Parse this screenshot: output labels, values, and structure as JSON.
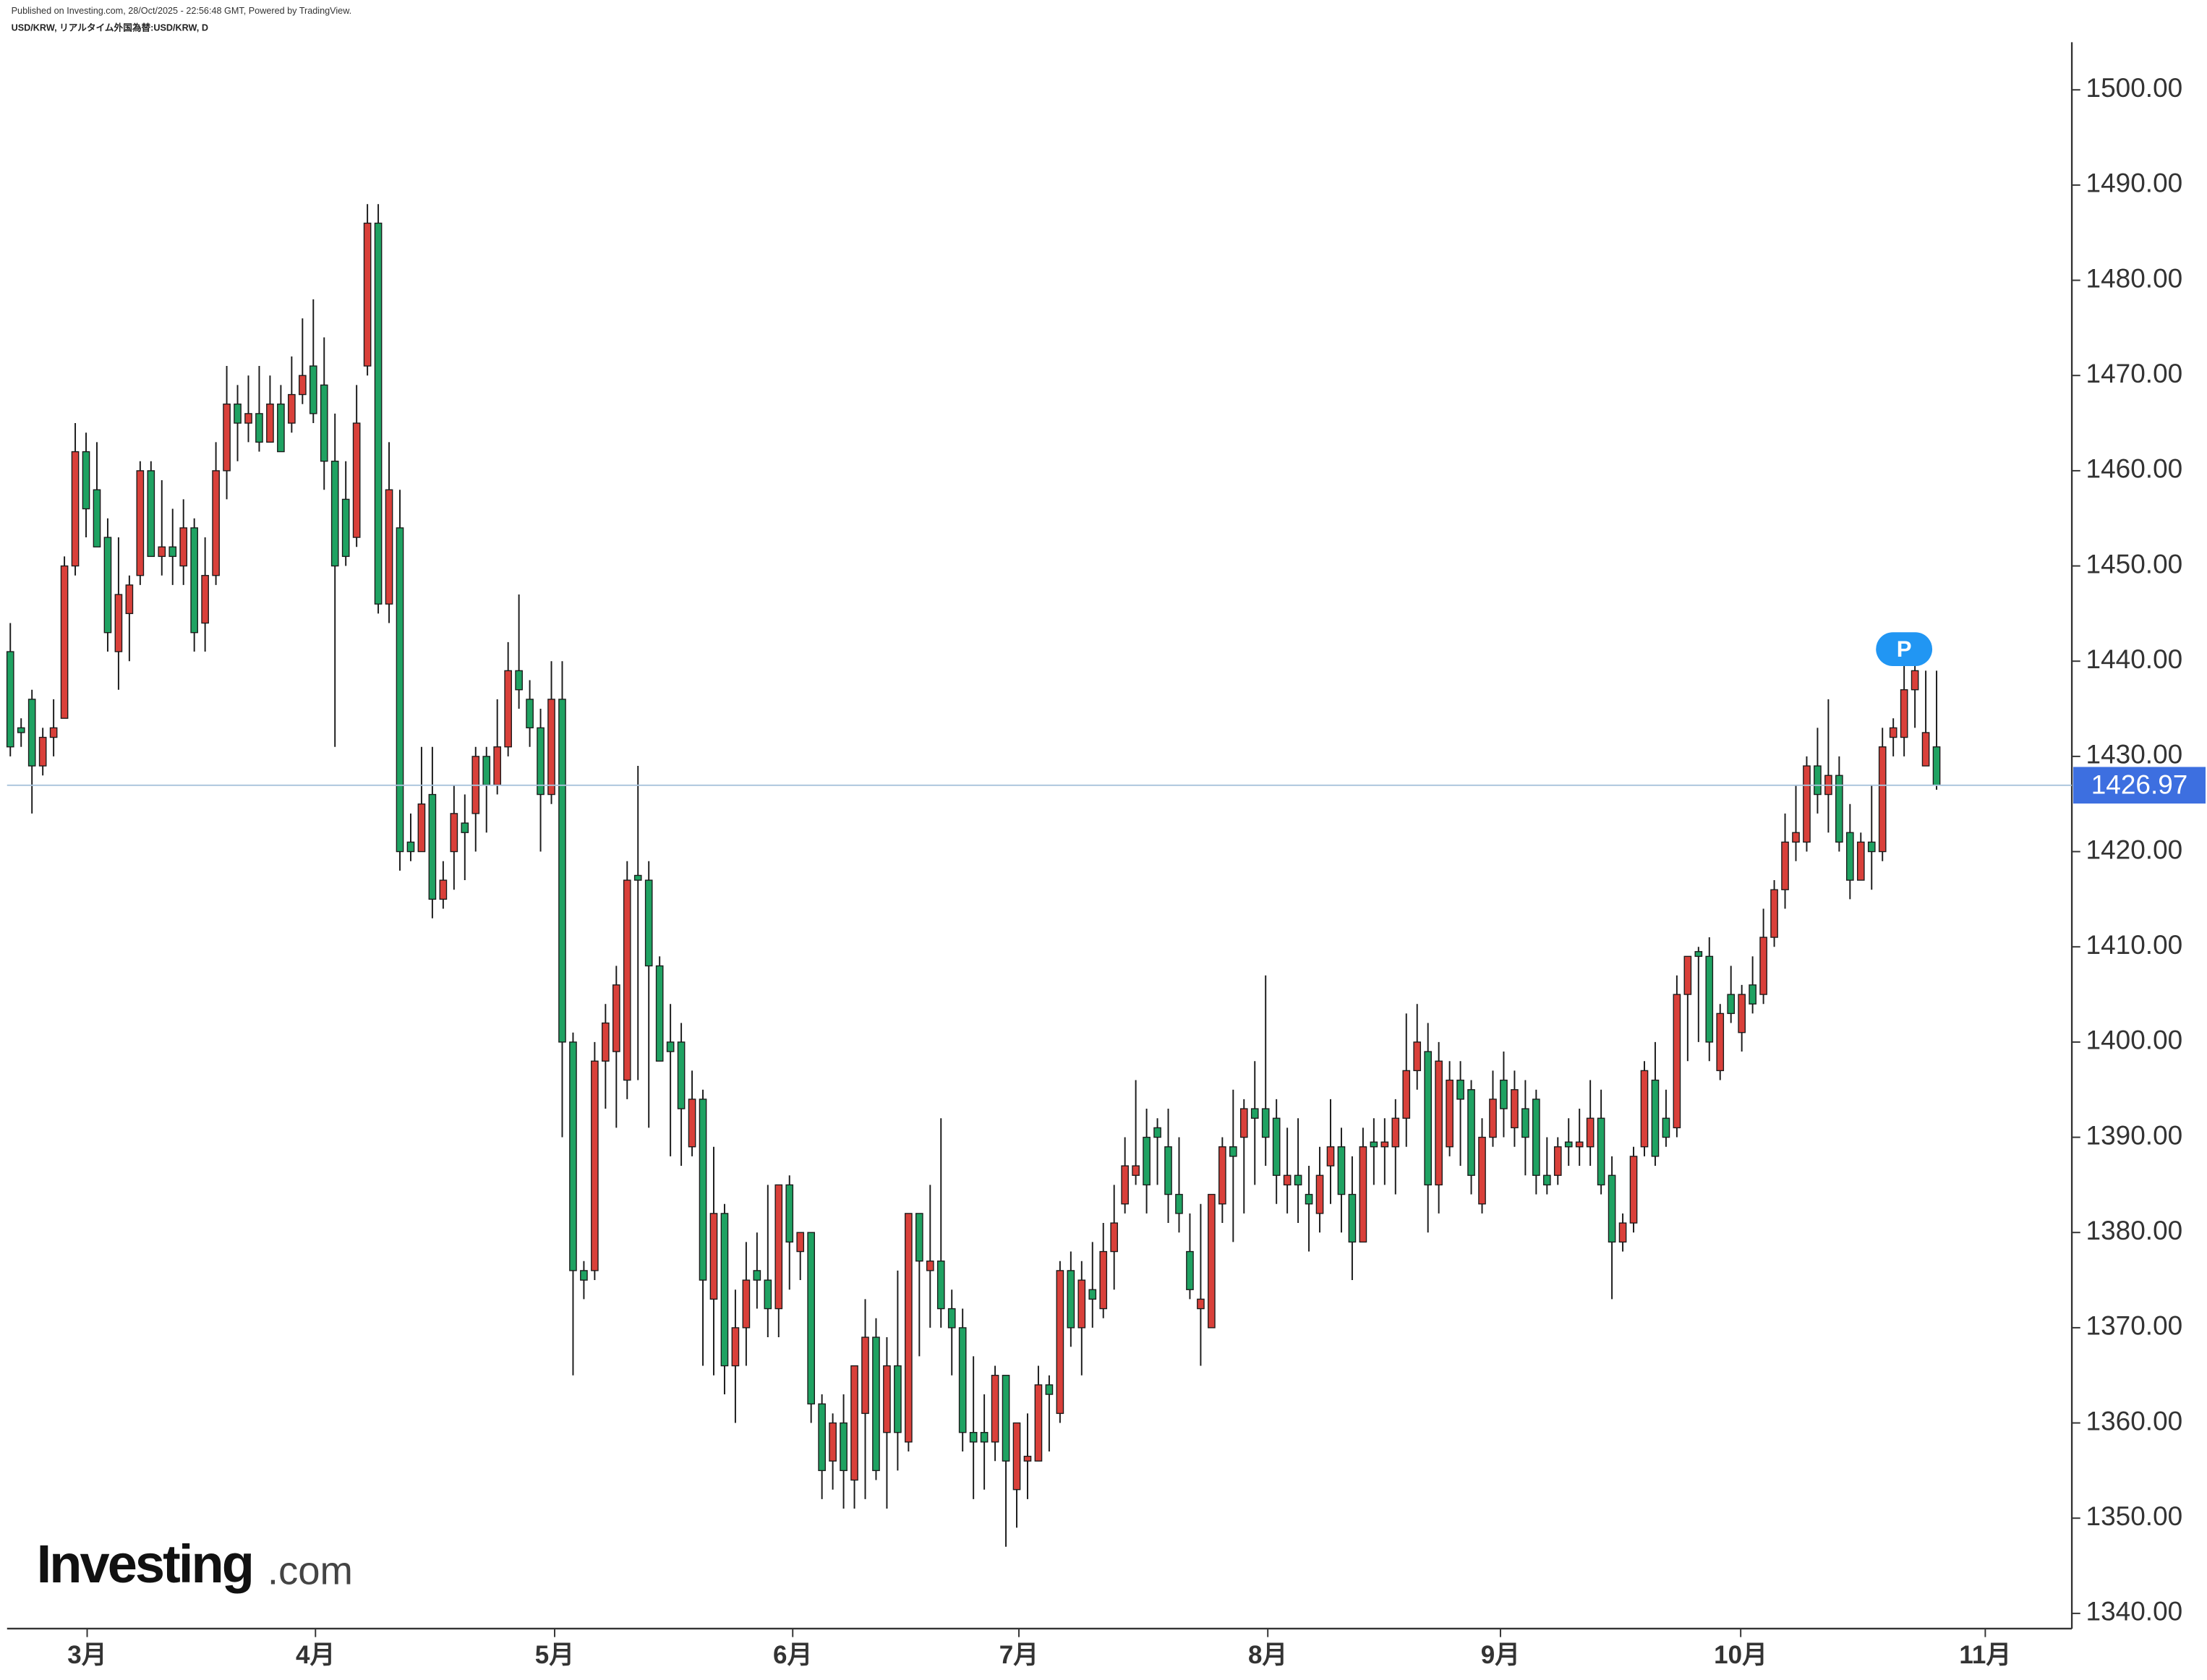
{
  "chart_data": {
    "type": "candlestick",
    "title": "USD/KRW, リアルタイム外国為替:USD/KRW, D",
    "published": "Published on Investing.com, 28/Oct/2025 - 22:56:48 GMT, Powered by TradingView.",
    "logo": {
      "main": "Investing",
      "suffix": ".com"
    },
    "marker_label": "P",
    "up_color": "#d9403a",
    "down_color": "#1fa262",
    "price_line_color": "#3d6fe0",
    "ylim": [
      1338.4,
      1505
    ],
    "yticks": [
      {
        "value": 1340,
        "label": "1340.00"
      },
      {
        "value": 1350,
        "label": "1350.00"
      },
      {
        "value": 1360,
        "label": "1360.00"
      },
      {
        "value": 1370,
        "label": "1370.00"
      },
      {
        "value": 1380,
        "label": "1380.00"
      },
      {
        "value": 1390,
        "label": "1390.00"
      },
      {
        "value": 1400,
        "label": "1400.00"
      },
      {
        "value": 1410,
        "label": "1410.00"
      },
      {
        "value": 1420,
        "label": "1420.00"
      },
      {
        "value": 1430,
        "label": "1430.00"
      },
      {
        "value": 1440,
        "label": "1440.00"
      },
      {
        "value": 1450,
        "label": "1450.00"
      },
      {
        "value": 1460,
        "label": "1460.00"
      },
      {
        "value": 1470,
        "label": "1470.00"
      },
      {
        "value": 1480,
        "label": "1480.00"
      },
      {
        "value": 1490,
        "label": "1490.00"
      },
      {
        "value": 1500,
        "label": "1500.00"
      }
    ],
    "xlim": [
      -0.3,
      190.5
    ],
    "xticks": [
      {
        "value": 7.1,
        "label": "3月"
      },
      {
        "value": 28.2,
        "label": "4月"
      },
      {
        "value": 50.3,
        "label": "5月"
      },
      {
        "value": 72.3,
        "label": "6月"
      },
      {
        "value": 93.2,
        "label": "7月"
      },
      {
        "value": 116.2,
        "label": "8月"
      },
      {
        "value": 137.7,
        "label": "9月"
      },
      {
        "value": 159.9,
        "label": "10月"
      },
      {
        "value": 182.5,
        "label": "11月"
      }
    ],
    "open": [
      1441,
      1433,
      1436,
      1429,
      1432,
      1434,
      1450,
      1462,
      1458,
      1453,
      1441,
      1445,
      1449,
      1460,
      1451,
      1452,
      1450,
      1454,
      1444,
      1449,
      1460,
      1467,
      1465,
      1466,
      1463,
      1467,
      1465,
      1468,
      1471,
      1469,
      1461,
      1457,
      1453,
      1471,
      1486,
      1446,
      1454,
      1421,
      1420,
      1426,
      1415,
      1420,
      1423,
      1424,
      1430,
      1427,
      1431,
      1439,
      1436,
      1433,
      1426,
      1436,
      1400,
      1376,
      1376,
      1398,
      1399,
      1396,
      1417.5,
      1417,
      1408,
      1400,
      1400,
      1389,
      1394,
      1373,
      1382,
      1366,
      1370,
      1376,
      1375,
      1372,
      1385,
      1378,
      1380,
      1362,
      1356,
      1360,
      1354,
      1361,
      1369,
      1359,
      1366,
      1358,
      1382,
      1376,
      1377,
      1372,
      1370,
      1359,
      1359,
      1358,
      1365,
      1353,
      1356,
      1356,
      1364,
      1361,
      1376,
      1370,
      1374,
      1372,
      1378,
      1383,
      1386,
      1390,
      1391,
      1389,
      1384,
      1378,
      1372,
      1370,
      1383,
      1389,
      1390,
      1393,
      1393,
      1392,
      1385,
      1386,
      1384,
      1382,
      1387,
      1389,
      1384,
      1379,
      1389.5,
      1389,
      1389,
      1392,
      1397,
      1399,
      1385,
      1389,
      1396,
      1395,
      1383,
      1390,
      1396,
      1391,
      1393,
      1394,
      1386,
      1386,
      1389.5,
      1389,
      1389,
      1392,
      1386,
      1379,
      1381,
      1389,
      1396,
      1392,
      1391,
      1405,
      1409.5,
      1409,
      1397,
      1405,
      1401,
      1406,
      1405,
      1411,
      1416,
      1421,
      1421,
      1429,
      1426,
      1428,
      1422,
      1417,
      1421,
      1420,
      1432,
      1432,
      1437,
      1429,
      1431
    ],
    "high": [
      1444,
      1434,
      1437,
      1433,
      1436,
      1451,
      1465,
      1464,
      1463,
      1455,
      1453,
      1449,
      1461,
      1461,
      1459,
      1456,
      1457,
      1455,
      1453,
      1463,
      1471,
      1469,
      1470,
      1471,
      1470,
      1469,
      1472,
      1476,
      1478,
      1474,
      1466,
      1461,
      1469,
      1488,
      1488,
      1463,
      1458,
      1424,
      1431,
      1431,
      1419,
      1427,
      1426,
      1431,
      1431,
      1436,
      1442,
      1447,
      1438,
      1435,
      1440,
      1440,
      1401,
      1377,
      1400,
      1404,
      1408,
      1419,
      1429,
      1419,
      1409,
      1404,
      1402,
      1397,
      1395,
      1389,
      1383,
      1374,
      1379,
      1380,
      1385,
      1385,
      1386,
      1380,
      1380,
      1363,
      1361,
      1363,
      1366,
      1373,
      1371,
      1369,
      1376,
      1382,
      1382,
      1385,
      1392,
      1374,
      1372,
      1367,
      1363,
      1366,
      1365,
      1360,
      1361,
      1366,
      1365,
      1377,
      1378,
      1377,
      1379,
      1381,
      1385,
      1390,
      1396,
      1393,
      1392,
      1393,
      1390,
      1382,
      1383,
      1384,
      1390,
      1395,
      1394,
      1398,
      1407,
      1394,
      1391,
      1392,
      1387,
      1389,
      1394,
      1391,
      1388,
      1391,
      1392,
      1392,
      1394,
      1403,
      1404,
      1402,
      1400,
      1398,
      1398,
      1396,
      1392,
      1397,
      1399,
      1397,
      1396,
      1395,
      1390,
      1390,
      1392,
      1393,
      1396,
      1395,
      1388,
      1382,
      1389,
      1398,
      1400,
      1395,
      1407,
      1409,
      1410,
      1411,
      1404,
      1408,
      1406,
      1409,
      1414,
      1417,
      1424,
      1427,
      1430,
      1433,
      1436,
      1430,
      1425,
      1422,
      1427,
      1433,
      1434,
      1442,
      1440,
      1439,
      1439
    ],
    "low": [
      1430,
      1431,
      1424,
      1428,
      1430,
      1434,
      1449,
      1453,
      1452,
      1441,
      1437,
      1440,
      1448,
      1451,
      1449,
      1448,
      1448,
      1441,
      1441,
      1448,
      1457,
      1461,
      1463,
      1462,
      1463,
      1462,
      1464,
      1467,
      1465,
      1458,
      1431,
      1450,
      1452,
      1470,
      1445,
      1444,
      1418,
      1419,
      1420,
      1413,
      1414,
      1416,
      1417,
      1420,
      1422,
      1426,
      1430,
      1435,
      1431,
      1420,
      1425,
      1390,
      1365,
      1373,
      1375,
      1393,
      1391,
      1394,
      1396,
      1391,
      1398,
      1388,
      1387,
      1388,
      1366,
      1365,
      1363,
      1360,
      1366,
      1372,
      1369,
      1369,
      1374,
      1375,
      1360,
      1352,
      1353,
      1351,
      1351,
      1352,
      1354,
      1351,
      1355,
      1357,
      1367,
      1370,
      1370,
      1365,
      1357,
      1352,
      1353,
      1356,
      1347,
      1349,
      1352,
      1356,
      1357,
      1360,
      1368,
      1365,
      1370,
      1371,
      1374,
      1382,
      1385,
      1382,
      1385,
      1381,
      1380,
      1373,
      1366,
      1370,
      1381,
      1379,
      1382,
      1385,
      1387,
      1383,
      1382,
      1381,
      1378,
      1380,
      1383,
      1380,
      1375,
      1379,
      1385,
      1385,
      1384,
      1389,
      1395,
      1380,
      1382,
      1388,
      1387,
      1384,
      1382,
      1389,
      1390,
      1389,
      1386,
      1384,
      1384,
      1385,
      1387,
      1387,
      1387,
      1384,
      1373,
      1378,
      1380,
      1388,
      1387,
      1389,
      1390,
      1398,
      1400,
      1398,
      1396,
      1402,
      1399,
      1403,
      1404,
      1410,
      1414,
      1419,
      1420,
      1424,
      1422,
      1420,
      1415,
      1417,
      1416,
      1419,
      1430,
      1430,
      1433,
      1429,
      1426.5
    ],
    "close": [
      1431,
      1432.5,
      1429,
      1432,
      1433,
      1450,
      1462,
      1456,
      1452,
      1443,
      1447,
      1448,
      1460,
      1451,
      1452,
      1451,
      1454,
      1443,
      1449,
      1460,
      1467,
      1465,
      1466,
      1463,
      1467,
      1462,
      1468,
      1470,
      1466,
      1461,
      1450,
      1451,
      1465,
      1486,
      1446,
      1458,
      1420,
      1420,
      1425,
      1415,
      1417,
      1424,
      1422,
      1430,
      1427,
      1431,
      1439,
      1437,
      1433,
      1426,
      1436,
      1400,
      1376,
      1375,
      1398,
      1402,
      1406,
      1417,
      1417,
      1408,
      1398,
      1399,
      1393,
      1394,
      1375,
      1382,
      1366,
      1370,
      1375,
      1375,
      1372,
      1385,
      1379,
      1380,
      1362,
      1355,
      1360,
      1355,
      1366,
      1369,
      1355,
      1366,
      1359,
      1382,
      1377,
      1377,
      1372,
      1370,
      1359,
      1358,
      1358,
      1365,
      1356,
      1360,
      1356.5,
      1364,
      1363,
      1376,
      1370,
      1375,
      1373,
      1378,
      1381,
      1387,
      1387,
      1385,
      1390,
      1384,
      1382,
      1374,
      1373,
      1384,
      1389,
      1388,
      1393,
      1392,
      1390,
      1386,
      1386,
      1385,
      1383,
      1386,
      1389,
      1384,
      1379,
      1389,
      1389,
      1389.5,
      1392,
      1397,
      1400,
      1385,
      1398,
      1396,
      1394,
      1386,
      1390,
      1394,
      1393,
      1395,
      1390,
      1386,
      1385,
      1389,
      1389,
      1389.5,
      1392,
      1385,
      1379,
      1381,
      1388,
      1397,
      1388,
      1390,
      1405,
      1409,
      1409,
      1400,
      1403,
      1403,
      1405,
      1404,
      1411,
      1416,
      1421,
      1422,
      1429,
      1426,
      1428,
      1421,
      1417,
      1421,
      1420,
      1431,
      1433,
      1437,
      1439,
      1432.5,
      1426.97
    ]
  }
}
